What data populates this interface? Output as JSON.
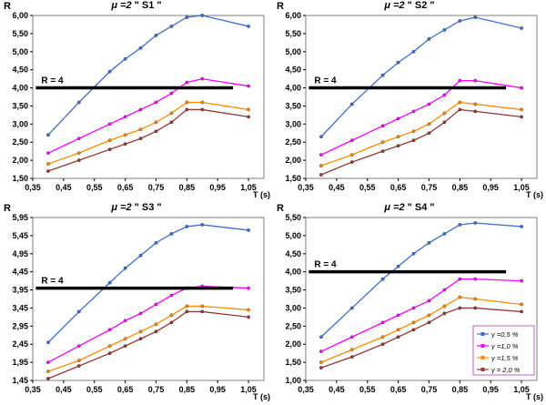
{
  "page": {
    "background": "#ffffff"
  },
  "chart_data": [
    {
      "type": "line",
      "title_prefix": "μ =2",
      "title_name": "\" S1 \"",
      "ylabel": "R",
      "xlabel": "T (s)",
      "grid": false,
      "xlim": [
        0.35,
        1.1
      ],
      "ylim": [
        1.5,
        6.0
      ],
      "x_tick_values": [
        0.35,
        0.45,
        0.55,
        0.65,
        0.75,
        0.85,
        0.95,
        1.05
      ],
      "x_tick_labels": [
        "0,35",
        "0,45",
        "0,55",
        "0,65",
        "0,75",
        "0,85",
        "0,95",
        "1,05"
      ],
      "y_tick_values": [
        1.5,
        2.0,
        2.5,
        3.0,
        3.5,
        4.0,
        4.5,
        5.0,
        5.5,
        6.0
      ],
      "y_tick_labels": [
        "1,50",
        "2,00",
        "2,50",
        "3,00",
        "3,50",
        "4,00",
        "4,50",
        "5,00",
        "5,50",
        "6,00"
      ],
      "ref_line": {
        "label": "R = 4",
        "value": 4,
        "x_start": 0.36,
        "x_end": 1.0
      },
      "x": [
        0.4,
        0.5,
        0.6,
        0.65,
        0.7,
        0.75,
        0.8,
        0.85,
        0.9,
        1.05
      ],
      "series": [
        {
          "name": "γ =0,5 %",
          "color": "#3b6fd4",
          "values": [
            2.7,
            3.6,
            4.45,
            4.8,
            5.1,
            5.45,
            5.7,
            5.95,
            6.0,
            5.7
          ]
        },
        {
          "name": "γ =1,0 %",
          "color": "#ff00ff",
          "values": [
            2.2,
            2.6,
            3.0,
            3.2,
            3.4,
            3.6,
            3.85,
            4.15,
            4.25,
            4.05
          ]
        },
        {
          "name": "γ =1,5 %",
          "color": "#ff8c00",
          "values": [
            1.9,
            2.2,
            2.55,
            2.7,
            2.85,
            3.05,
            3.3,
            3.6,
            3.6,
            3.4
          ]
        },
        {
          "name": "γ = 2,0 %",
          "color": "#953735",
          "values": [
            1.7,
            2.0,
            2.3,
            2.45,
            2.6,
            2.8,
            3.05,
            3.4,
            3.4,
            3.2
          ]
        }
      ],
      "legend": false
    },
    {
      "type": "line",
      "title_prefix": "μ =2",
      "title_name": "\" S2 \"",
      "ylabel": "R",
      "xlabel": "T (s)",
      "grid": false,
      "xlim": [
        0.35,
        1.1
      ],
      "ylim": [
        1.5,
        6.0
      ],
      "x_tick_values": [
        0.35,
        0.45,
        0.55,
        0.65,
        0.75,
        0.85,
        0.95,
        1.05
      ],
      "x_tick_labels": [
        "0,35",
        "0,45",
        "0,55",
        "0,65",
        "0,75",
        "0,85",
        "0,95",
        "1,05"
      ],
      "y_tick_values": [
        1.5,
        2.0,
        2.5,
        3.0,
        3.5,
        4.0,
        4.5,
        5.0,
        5.5,
        6.0
      ],
      "y_tick_labels": [
        "1,50",
        "2,00",
        "2,50",
        "3,00",
        "3,50",
        "4,00",
        "4,50",
        "5,00",
        "5,50",
        "6,00"
      ],
      "ref_line": {
        "label": "R = 4",
        "value": 4,
        "x_start": 0.36,
        "x_end": 1.0
      },
      "x": [
        0.4,
        0.5,
        0.6,
        0.65,
        0.7,
        0.75,
        0.8,
        0.85,
        0.9,
        1.05
      ],
      "series": [
        {
          "name": "γ =0,5 %",
          "color": "#3b6fd4",
          "values": [
            2.65,
            3.55,
            4.35,
            4.7,
            5.0,
            5.35,
            5.6,
            5.85,
            5.95,
            5.65
          ]
        },
        {
          "name": "γ =1,0 %",
          "color": "#ff00ff",
          "values": [
            2.15,
            2.55,
            2.95,
            3.15,
            3.35,
            3.55,
            3.8,
            4.2,
            4.2,
            4.0
          ]
        },
        {
          "name": "γ =1,5 %",
          "color": "#ff8c00",
          "values": [
            1.85,
            2.15,
            2.5,
            2.65,
            2.8,
            3.0,
            3.3,
            3.6,
            3.55,
            3.4
          ]
        },
        {
          "name": "γ = 2,0 %",
          "color": "#953735",
          "values": [
            1.6,
            1.95,
            2.25,
            2.4,
            2.55,
            2.75,
            3.05,
            3.4,
            3.35,
            3.2
          ]
        }
      ],
      "legend": false
    },
    {
      "type": "line",
      "title_prefix": "μ =2",
      "title_name": "\" S3 \"",
      "ylabel": "R",
      "xlabel": "T (s)",
      "grid": false,
      "xlim": [
        0.35,
        1.1
      ],
      "ylim": [
        1.45,
        5.95
      ],
      "x_tick_values": [
        0.35,
        0.45,
        0.55,
        0.65,
        0.75,
        0.85,
        0.95,
        1.05
      ],
      "x_tick_labels": [
        "0,35",
        "0,45",
        "0,55",
        "0,65",
        "0,75",
        "0,85",
        "0,95",
        "1,05"
      ],
      "y_tick_values": [
        1.45,
        1.95,
        2.45,
        2.95,
        3.45,
        3.95,
        4.45,
        4.95,
        5.45,
        5.95
      ],
      "y_tick_labels": [
        "1,45",
        "1,95",
        "2,45",
        "2,95",
        "3,45",
        "3,95",
        "4,45",
        "4,95",
        "5,45",
        "5,95"
      ],
      "ref_line": {
        "label": "R = 4",
        "value": 4,
        "x_start": 0.36,
        "x_end": 1.0
      },
      "x": [
        0.4,
        0.5,
        0.6,
        0.65,
        0.7,
        0.75,
        0.8,
        0.85,
        0.9,
        1.05
      ],
      "series": [
        {
          "name": "γ =0,5 %",
          "color": "#3b6fd4",
          "values": [
            2.5,
            3.35,
            4.15,
            4.55,
            4.9,
            5.25,
            5.5,
            5.7,
            5.75,
            5.6
          ]
        },
        {
          "name": "γ =1,0 %",
          "color": "#ff00ff",
          "values": [
            1.95,
            2.4,
            2.85,
            3.1,
            3.3,
            3.55,
            3.8,
            4.0,
            4.05,
            4.0
          ]
        },
        {
          "name": "γ =1,5 %",
          "color": "#ff8c00",
          "values": [
            1.7,
            2.0,
            2.4,
            2.6,
            2.8,
            3.0,
            3.25,
            3.5,
            3.5,
            3.4
          ]
        },
        {
          "name": "γ = 2,0 %",
          "color": "#953735",
          "values": [
            1.5,
            1.85,
            2.2,
            2.4,
            2.6,
            2.8,
            3.05,
            3.35,
            3.35,
            3.2
          ]
        }
      ],
      "legend": false
    },
    {
      "type": "line",
      "title_prefix": "μ =2",
      "title_name": "\" S4 \"",
      "ylabel": "R",
      "xlabel": "T (s)",
      "grid": false,
      "xlim": [
        0.35,
        1.1
      ],
      "ylim": [
        1.0,
        5.5
      ],
      "x_tick_values": [
        0.35,
        0.45,
        0.55,
        0.65,
        0.75,
        0.85,
        0.95,
        1.05
      ],
      "x_tick_labels": [
        "0,35",
        "0,45",
        "0,55",
        "0,65",
        "0,75",
        "0,85",
        "0,95",
        "1,05"
      ],
      "y_tick_values": [
        1.0,
        1.5,
        2.0,
        2.5,
        3.0,
        3.5,
        4.0,
        4.5,
        5.0,
        5.5
      ],
      "y_tick_labels": [
        "1,00",
        "1,50",
        "2,00",
        "2,50",
        "3,00",
        "3,50",
        "4,00",
        "4,50",
        "5,00",
        "5,50"
      ],
      "ref_line": {
        "label": "R = 4",
        "value": 4,
        "x_start": 0.36,
        "x_end": 1.0
      },
      "x": [
        0.4,
        0.5,
        0.6,
        0.65,
        0.7,
        0.75,
        0.8,
        0.85,
        0.9,
        1.05
      ],
      "series": [
        {
          "name": "γ =0,5 %",
          "color": "#3b6fd4",
          "values": [
            2.2,
            3.0,
            3.8,
            4.15,
            4.5,
            4.8,
            5.05,
            5.3,
            5.35,
            5.25
          ]
        },
        {
          "name": "γ =1,0 %",
          "color": "#ff00ff",
          "values": [
            1.8,
            2.2,
            2.6,
            2.8,
            3.0,
            3.2,
            3.5,
            3.8,
            3.8,
            3.75
          ]
        },
        {
          "name": "γ =1,5 %",
          "color": "#ff8c00",
          "values": [
            1.5,
            1.85,
            2.2,
            2.4,
            2.6,
            2.8,
            3.05,
            3.3,
            3.25,
            3.1
          ]
        },
        {
          "name": "γ = 2,0 %",
          "color": "#953735",
          "values": [
            1.35,
            1.65,
            2.0,
            2.2,
            2.4,
            2.6,
            2.85,
            3.0,
            3.0,
            2.9
          ]
        }
      ],
      "legend": true,
      "legend_border_color": "#c060c0"
    }
  ]
}
